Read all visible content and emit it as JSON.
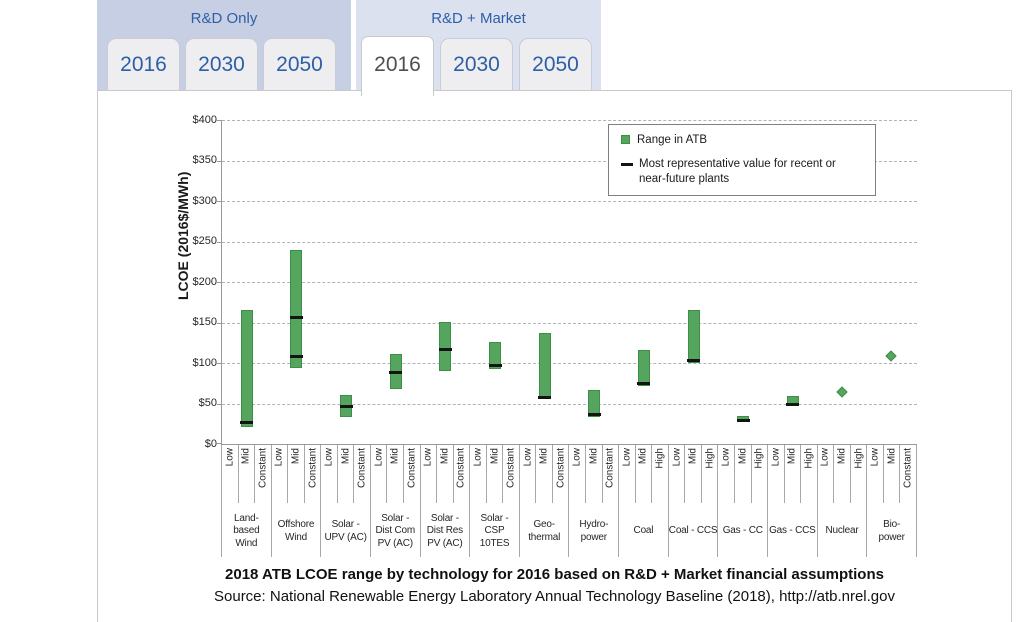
{
  "tabs": {
    "groups": [
      {
        "label": "R&D Only",
        "years": [
          "2016",
          "2030",
          "2050"
        ],
        "active_year": null
      },
      {
        "label": "R&D + Market",
        "years": [
          "2016",
          "2030",
          "2050"
        ],
        "active_year": "2016"
      }
    ]
  },
  "colors": {
    "bar_green": "#56a55e",
    "bar_green_border": "#3c8f46",
    "tab_text_blue": "#2d5fa6",
    "rd_only_bg": "#c7cfe4",
    "rd_market_bg": "#dce1ef",
    "gridline": "#b3b3b3"
  },
  "chart_data": {
    "type": "bar",
    "subtype": "floating-range-bars-with-representative-dashes",
    "title": "2018 ATB LCOE range by technology for 2016 based on R&D + Market financial assumptions",
    "source": "Source: National Renewable Energy Laboratory Annual Technology Baseline (2018),  http://atb.nrel.gov",
    "ylabel": "LCOE (2016$/MWh)",
    "ylim": [
      0,
      400
    ],
    "ytick_step": 50,
    "ytick_prefix": "$",
    "grid": "dashed-horizontal",
    "legend_position": "top-right-inside",
    "legend": [
      "Range in ATB",
      "Most representative value for recent or near-future plants"
    ],
    "categories": [
      {
        "label": "Land-\nbased\nWind",
        "sub_labels": [
          "Low",
          "Mid",
          "Constant"
        ],
        "low": 21,
        "high": 165,
        "representative": [
          26
        ]
      },
      {
        "label": "Offshore\nWind",
        "sub_labels": [
          "Low",
          "Mid",
          "Constant"
        ],
        "low": 94,
        "high": 240,
        "representative": [
          108,
          156
        ]
      },
      {
        "label": "Solar -\nUPV (AC)",
        "sub_labels": [
          "Low",
          "Mid",
          "Constant"
        ],
        "low": 33,
        "high": 61,
        "representative": [
          46
        ]
      },
      {
        "label": "Solar -\nDist Com\nPV (AC)",
        "sub_labels": [
          "Low",
          "Mid",
          "Constant"
        ],
        "low": 68,
        "high": 111,
        "representative": [
          88
        ]
      },
      {
        "label": "Solar -\nDist Res\nPV (AC)",
        "sub_labels": [
          "Low",
          "Mid",
          "Constant"
        ],
        "low": 90,
        "high": 151,
        "representative": [
          117
        ]
      },
      {
        "label": "Solar - CSP\n10TES",
        "sub_labels": [
          "Low",
          "Mid",
          "Constant"
        ],
        "low": 92,
        "high": 126,
        "representative": [
          97
        ]
      },
      {
        "label": "Geo-\nthermal",
        "sub_labels": [
          "Low",
          "Mid",
          "Constant"
        ],
        "low": 56,
        "high": 137,
        "representative": [
          58
        ]
      },
      {
        "label": "Hydro-\npower",
        "sub_labels": [
          "Low",
          "Mid",
          "Constant"
        ],
        "low": 33,
        "high": 67,
        "representative": [
          36
        ]
      },
      {
        "label": "Coal",
        "sub_labels": [
          "Low",
          "Mid",
          "High"
        ],
        "low": 71,
        "high": 116,
        "representative": [
          75
        ]
      },
      {
        "label": "Coal - CCS",
        "sub_labels": [
          "Low",
          "Mid",
          "High"
        ],
        "low": 100,
        "high": 165,
        "representative": [
          103
        ]
      },
      {
        "label": "Gas - CC",
        "sub_labels": [
          "Low",
          "Mid",
          "High"
        ],
        "low": 28,
        "high": 35,
        "representative": [
          29
        ]
      },
      {
        "label": "Gas - CCS",
        "sub_labels": [
          "Low",
          "Mid",
          "High"
        ],
        "low": 47,
        "high": 59,
        "representative": [
          49
        ]
      },
      {
        "label": "Nuclear",
        "sub_labels": [
          "Low",
          "Mid",
          "High"
        ],
        "point": 63
      },
      {
        "label": "Bio-\npower",
        "sub_labels": [
          "Low",
          "Mid",
          "Constant"
        ],
        "point": 108
      }
    ]
  }
}
